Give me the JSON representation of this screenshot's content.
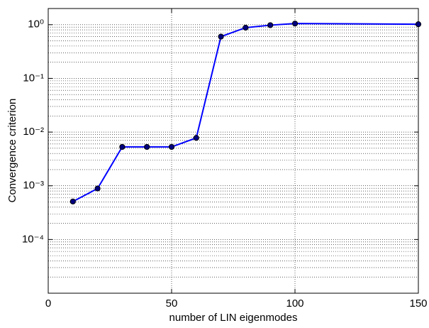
{
  "chart_data": {
    "type": "line",
    "xlabel": "number of LIN eigenmodes",
    "ylabel": "Convergence criterion",
    "x": [
      10,
      20,
      30,
      40,
      50,
      60,
      70,
      80,
      90,
      100,
      150
    ],
    "series": [
      {
        "color": "#0000ff",
        "marker_color": "#000080",
        "values": [
          0.00051,
          0.00089,
          0.0053,
          0.0053,
          0.0053,
          0.0078,
          0.6,
          0.88,
          0.98,
          1.05,
          1.02
        ]
      }
    ],
    "xlim": [
      0,
      150
    ],
    "xticks": [
      0,
      50,
      100,
      150
    ],
    "ylim": [
      1e-05,
      2
    ],
    "log_y": true,
    "yticks": [
      {
        "value": 0.0001,
        "label": "10⁻⁴"
      },
      {
        "value": 0.001,
        "label": "10⁻³"
      },
      {
        "value": 0.01,
        "label": "10⁻²"
      },
      {
        "value": 0.1,
        "label": "10⁻¹"
      },
      {
        "value": 1,
        "label": "10⁰"
      }
    ],
    "grid": true,
    "minor_grid": true
  }
}
